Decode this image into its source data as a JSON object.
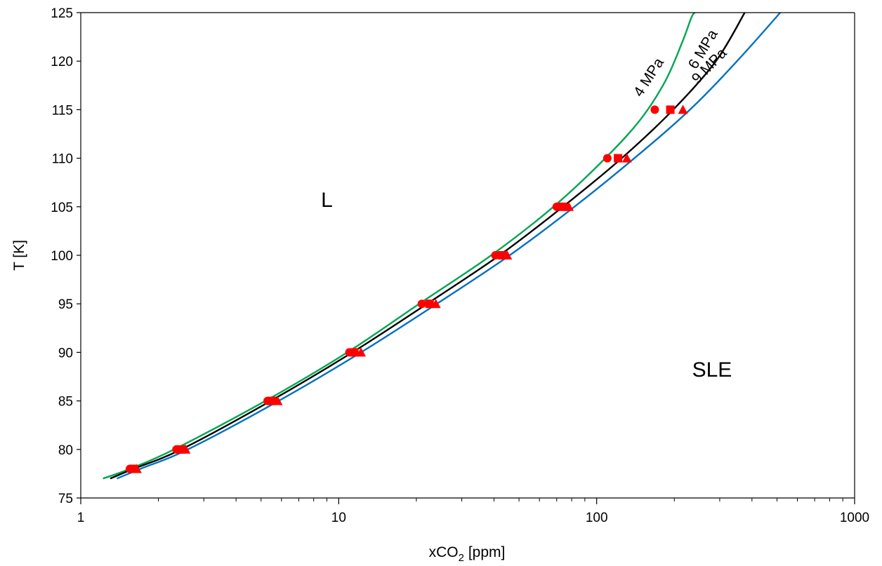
{
  "chart_data": {
    "type": "scatter",
    "xlabel_main": "xCO",
    "xlabel_sub": "2",
    "xlabel_unit": " [ppm]",
    "ylabel": "T [K]",
    "x_scale": "log",
    "xlim": [
      1,
      1000
    ],
    "ylim": [
      75,
      125
    ],
    "x_ticks": [
      1,
      10,
      100,
      1000
    ],
    "x_tick_labels": [
      "1",
      "10",
      "100",
      "1000"
    ],
    "y_ticks": [
      75,
      80,
      85,
      90,
      95,
      100,
      105,
      110,
      115,
      120,
      125
    ],
    "y_tick_labels": [
      "75",
      "80",
      "85",
      "90",
      "95",
      "100",
      "105",
      "110",
      "115",
      "120",
      "125"
    ],
    "grid": false,
    "region_labels": [
      {
        "text": "L",
        "x": 9,
        "y": 105
      },
      {
        "text": "SLE",
        "x": 280,
        "y": 87.5
      }
    ],
    "curves": [
      {
        "label": "4 MPa",
        "color": "#00a651",
        "x": [
          1.22,
          1.55,
          2.3,
          5.2,
          10.8,
          20.5,
          39,
          68,
          108,
          148,
          185,
          215,
          233,
          240
        ],
        "y": [
          77,
          78,
          80,
          85,
          90,
          95,
          100,
          105,
          110,
          114,
          118,
          122,
          124.5,
          125
        ]
      },
      {
        "label": "6 MPa",
        "color": "#000000",
        "x": [
          1.3,
          1.6,
          2.45,
          5.45,
          11.3,
          22,
          42,
          74,
          125,
          198,
          290,
          375
        ],
        "y": [
          77,
          78,
          80,
          85,
          90,
          95,
          100,
          105,
          110,
          115,
          120,
          125
        ]
      },
      {
        "label": "9 MPa",
        "color": "#0070c0",
        "x": [
          1.38,
          1.7,
          2.6,
          5.85,
          12.2,
          24,
          46,
          82,
          140,
          230,
          350,
          515
        ],
        "y": [
          77,
          78,
          80,
          85,
          90,
          95,
          100,
          105,
          110,
          115,
          120,
          125
        ]
      }
    ],
    "curve_label_color": "#000000",
    "marker_color": "#ff0000",
    "series": [
      {
        "marker": "circle",
        "x": [
          1.55,
          2.35,
          5.3,
          11.0,
          21.0,
          40.5,
          70,
          110,
          168
        ],
        "y": [
          78,
          80,
          85,
          90,
          95,
          100,
          105,
          110,
          115
        ]
      },
      {
        "marker": "square",
        "x": [
          1.6,
          2.45,
          5.5,
          11.5,
          22.5,
          43,
          74,
          121,
          193
        ],
        "y": [
          78,
          80,
          85,
          90,
          95,
          100,
          105,
          110,
          115
        ]
      },
      {
        "marker": "triangle",
        "x": [
          1.65,
          2.55,
          5.8,
          12.2,
          23.8,
          45,
          78,
          131,
          216
        ],
        "y": [
          78,
          80,
          85,
          90,
          95,
          100,
          105,
          110,
          115
        ]
      }
    ]
  }
}
